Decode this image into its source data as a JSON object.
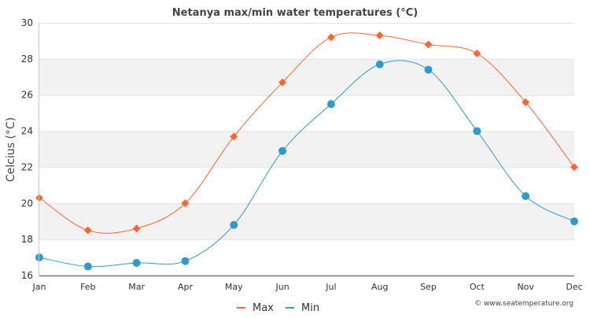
{
  "chart_data": {
    "type": "line",
    "title": "Netanya max/min water temperatures (°C)",
    "xlabel": "",
    "ylabel": "Celcius (°C)",
    "ylim": [
      16,
      30
    ],
    "yticks": [
      16,
      18,
      20,
      22,
      24,
      26,
      28,
      30
    ],
    "categories": [
      "Jan",
      "Feb",
      "Mar",
      "Apr",
      "May",
      "Jun",
      "Jul",
      "Aug",
      "Sep",
      "Oct",
      "Nov",
      "Dec"
    ],
    "series": [
      {
        "name": "Max",
        "color": "#ff6633",
        "marker": "diamond",
        "values": [
          20.3,
          18.5,
          18.6,
          20.0,
          23.7,
          26.7,
          29.2,
          29.3,
          28.8,
          28.3,
          25.6,
          22.0
        ]
      },
      {
        "name": "Min",
        "color": "#3399cc",
        "marker": "circle",
        "values": [
          17.0,
          16.5,
          16.7,
          16.8,
          18.8,
          22.9,
          25.5,
          27.7,
          27.4,
          24.0,
          20.4,
          19.0
        ]
      }
    ],
    "legend_position": "bottom-center",
    "grid": true,
    "credit": "© www.seatemperature.org"
  }
}
